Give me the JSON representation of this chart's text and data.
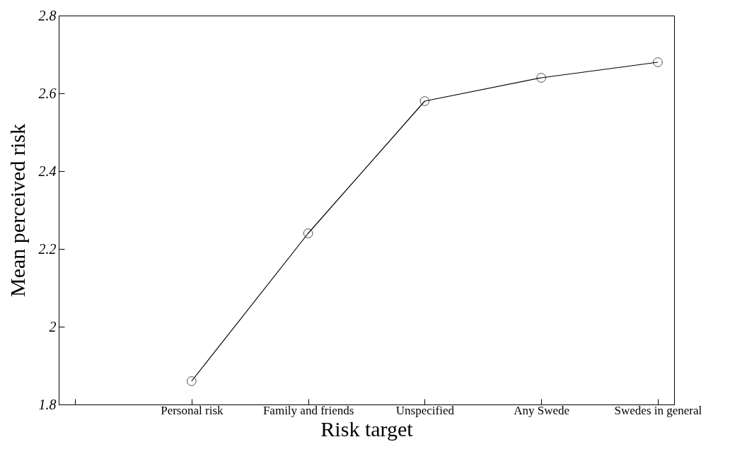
{
  "chart_data": {
    "type": "line",
    "xlabel": "Risk target",
    "ylabel": "Mean perceived risk",
    "categories": [
      null,
      "Personal risk",
      "Family and friends",
      "Unspecified",
      "Any Swede",
      "Swedes in general"
    ],
    "series": [
      {
        "color": "#000000",
        "values": [
          null,
          1.86,
          2.24,
          2.58,
          2.64,
          2.68
        ]
      }
    ],
    "ylim": [
      1.8,
      2.8
    ],
    "yticks": [
      1.8,
      2,
      2.2,
      2.4,
      2.6,
      2.8
    ],
    "marker": "circle",
    "line_style": "solid",
    "grid": false,
    "legend": false
  }
}
